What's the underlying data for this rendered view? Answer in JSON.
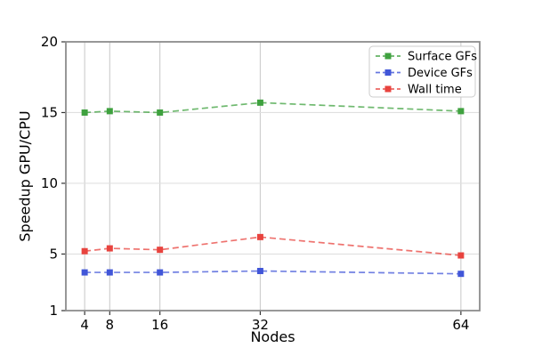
{
  "figure": {
    "background": "#ffffff"
  },
  "chart_data": {
    "type": "line",
    "title": "",
    "xlabel": "Nodes",
    "ylabel": "Speedup GPU/CPU",
    "x": [
      4,
      8,
      16,
      32,
      64
    ],
    "xticks": [
      4,
      8,
      16,
      32,
      64
    ],
    "yticks": [
      1,
      5,
      10,
      15,
      20
    ],
    "xlim": [
      1,
      67
    ],
    "ylim": [
      1,
      20
    ],
    "grid": true,
    "line_style": "dashed",
    "marker": "square",
    "legend_position": "upper right",
    "series": [
      {
        "name": "Surface GFs",
        "color": "#3fa13f",
        "values": [
          15.0,
          15.1,
          15.0,
          15.7,
          15.1
        ]
      },
      {
        "name": "Device GFs",
        "color": "#4156d8",
        "values": [
          3.7,
          3.7,
          3.7,
          3.8,
          3.6
        ]
      },
      {
        "name": "Wall time",
        "color": "#e8433e",
        "values": [
          5.2,
          5.4,
          5.3,
          6.2,
          4.9
        ]
      }
    ],
    "style": {
      "spine_color": "#8c8c8c",
      "grid_color_v": "#cccccc",
      "grid_color_h": "#e0e0e0",
      "tick_color": "#333333",
      "text_color": "#000000",
      "legend_border": "#cccccc",
      "legend_bg": "#ffffff"
    }
  }
}
